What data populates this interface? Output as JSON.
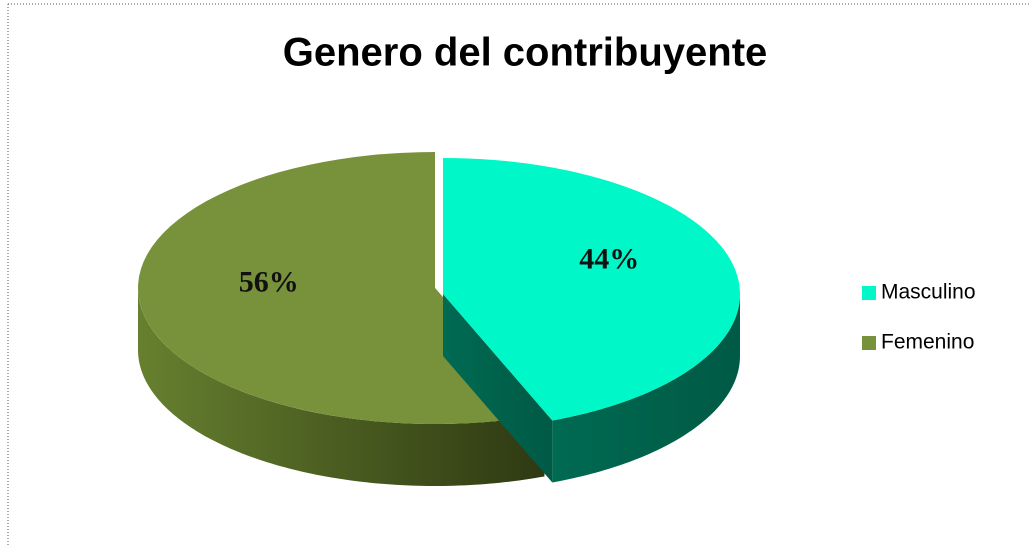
{
  "chart_data": {
    "type": "pie",
    "title": "Genero del contribuyente",
    "categories": [
      "Masculino",
      "Femenino"
    ],
    "values": [
      44,
      56
    ],
    "value_labels": [
      "44%",
      "56%"
    ],
    "colors": [
      "#00f7c8",
      "#77923b"
    ],
    "legend": "right"
  }
}
